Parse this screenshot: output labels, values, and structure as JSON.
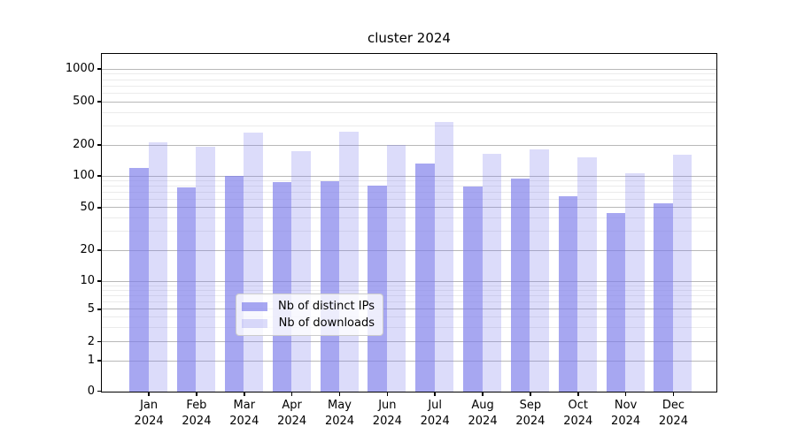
{
  "title": "cluster 2024",
  "chart_data": {
    "type": "bar",
    "title": "cluster 2024",
    "categories": [
      "Jan",
      "Feb",
      "Mar",
      "Apr",
      "May",
      "Jun",
      "Jul",
      "Aug",
      "Sep",
      "Oct",
      "Nov",
      "Dec"
    ],
    "x_year_label": "2024",
    "series": [
      {
        "name": "Nb of distinct IPs",
        "color": "#7d7deb",
        "alpha": 0.68,
        "values": [
          122,
          79,
          102,
          88,
          91,
          82,
          135,
          80,
          96,
          65,
          45,
          56
        ]
      },
      {
        "name": "Nb of downloads",
        "color": "#7d7deb",
        "alpha": 0.27,
        "values": [
          215,
          195,
          265,
          175,
          270,
          202,
          330,
          168,
          185,
          155,
          107,
          162
        ]
      }
    ],
    "y_ticks": [
      0,
      1,
      2,
      5,
      10,
      20,
      50,
      100,
      200,
      500,
      1000
    ],
    "y_minor_ticks": [
      3,
      4,
      6,
      7,
      8,
      9,
      30,
      40,
      60,
      70,
      80,
      90,
      300,
      400,
      600,
      700,
      800,
      900
    ],
    "scale": "symlog",
    "ylim": [
      0,
      1400
    ],
    "grid": "both",
    "legend_position": "lower center",
    "grid_major_color": "#b8b8b8",
    "grid_minor_color": "#ebebeb"
  }
}
